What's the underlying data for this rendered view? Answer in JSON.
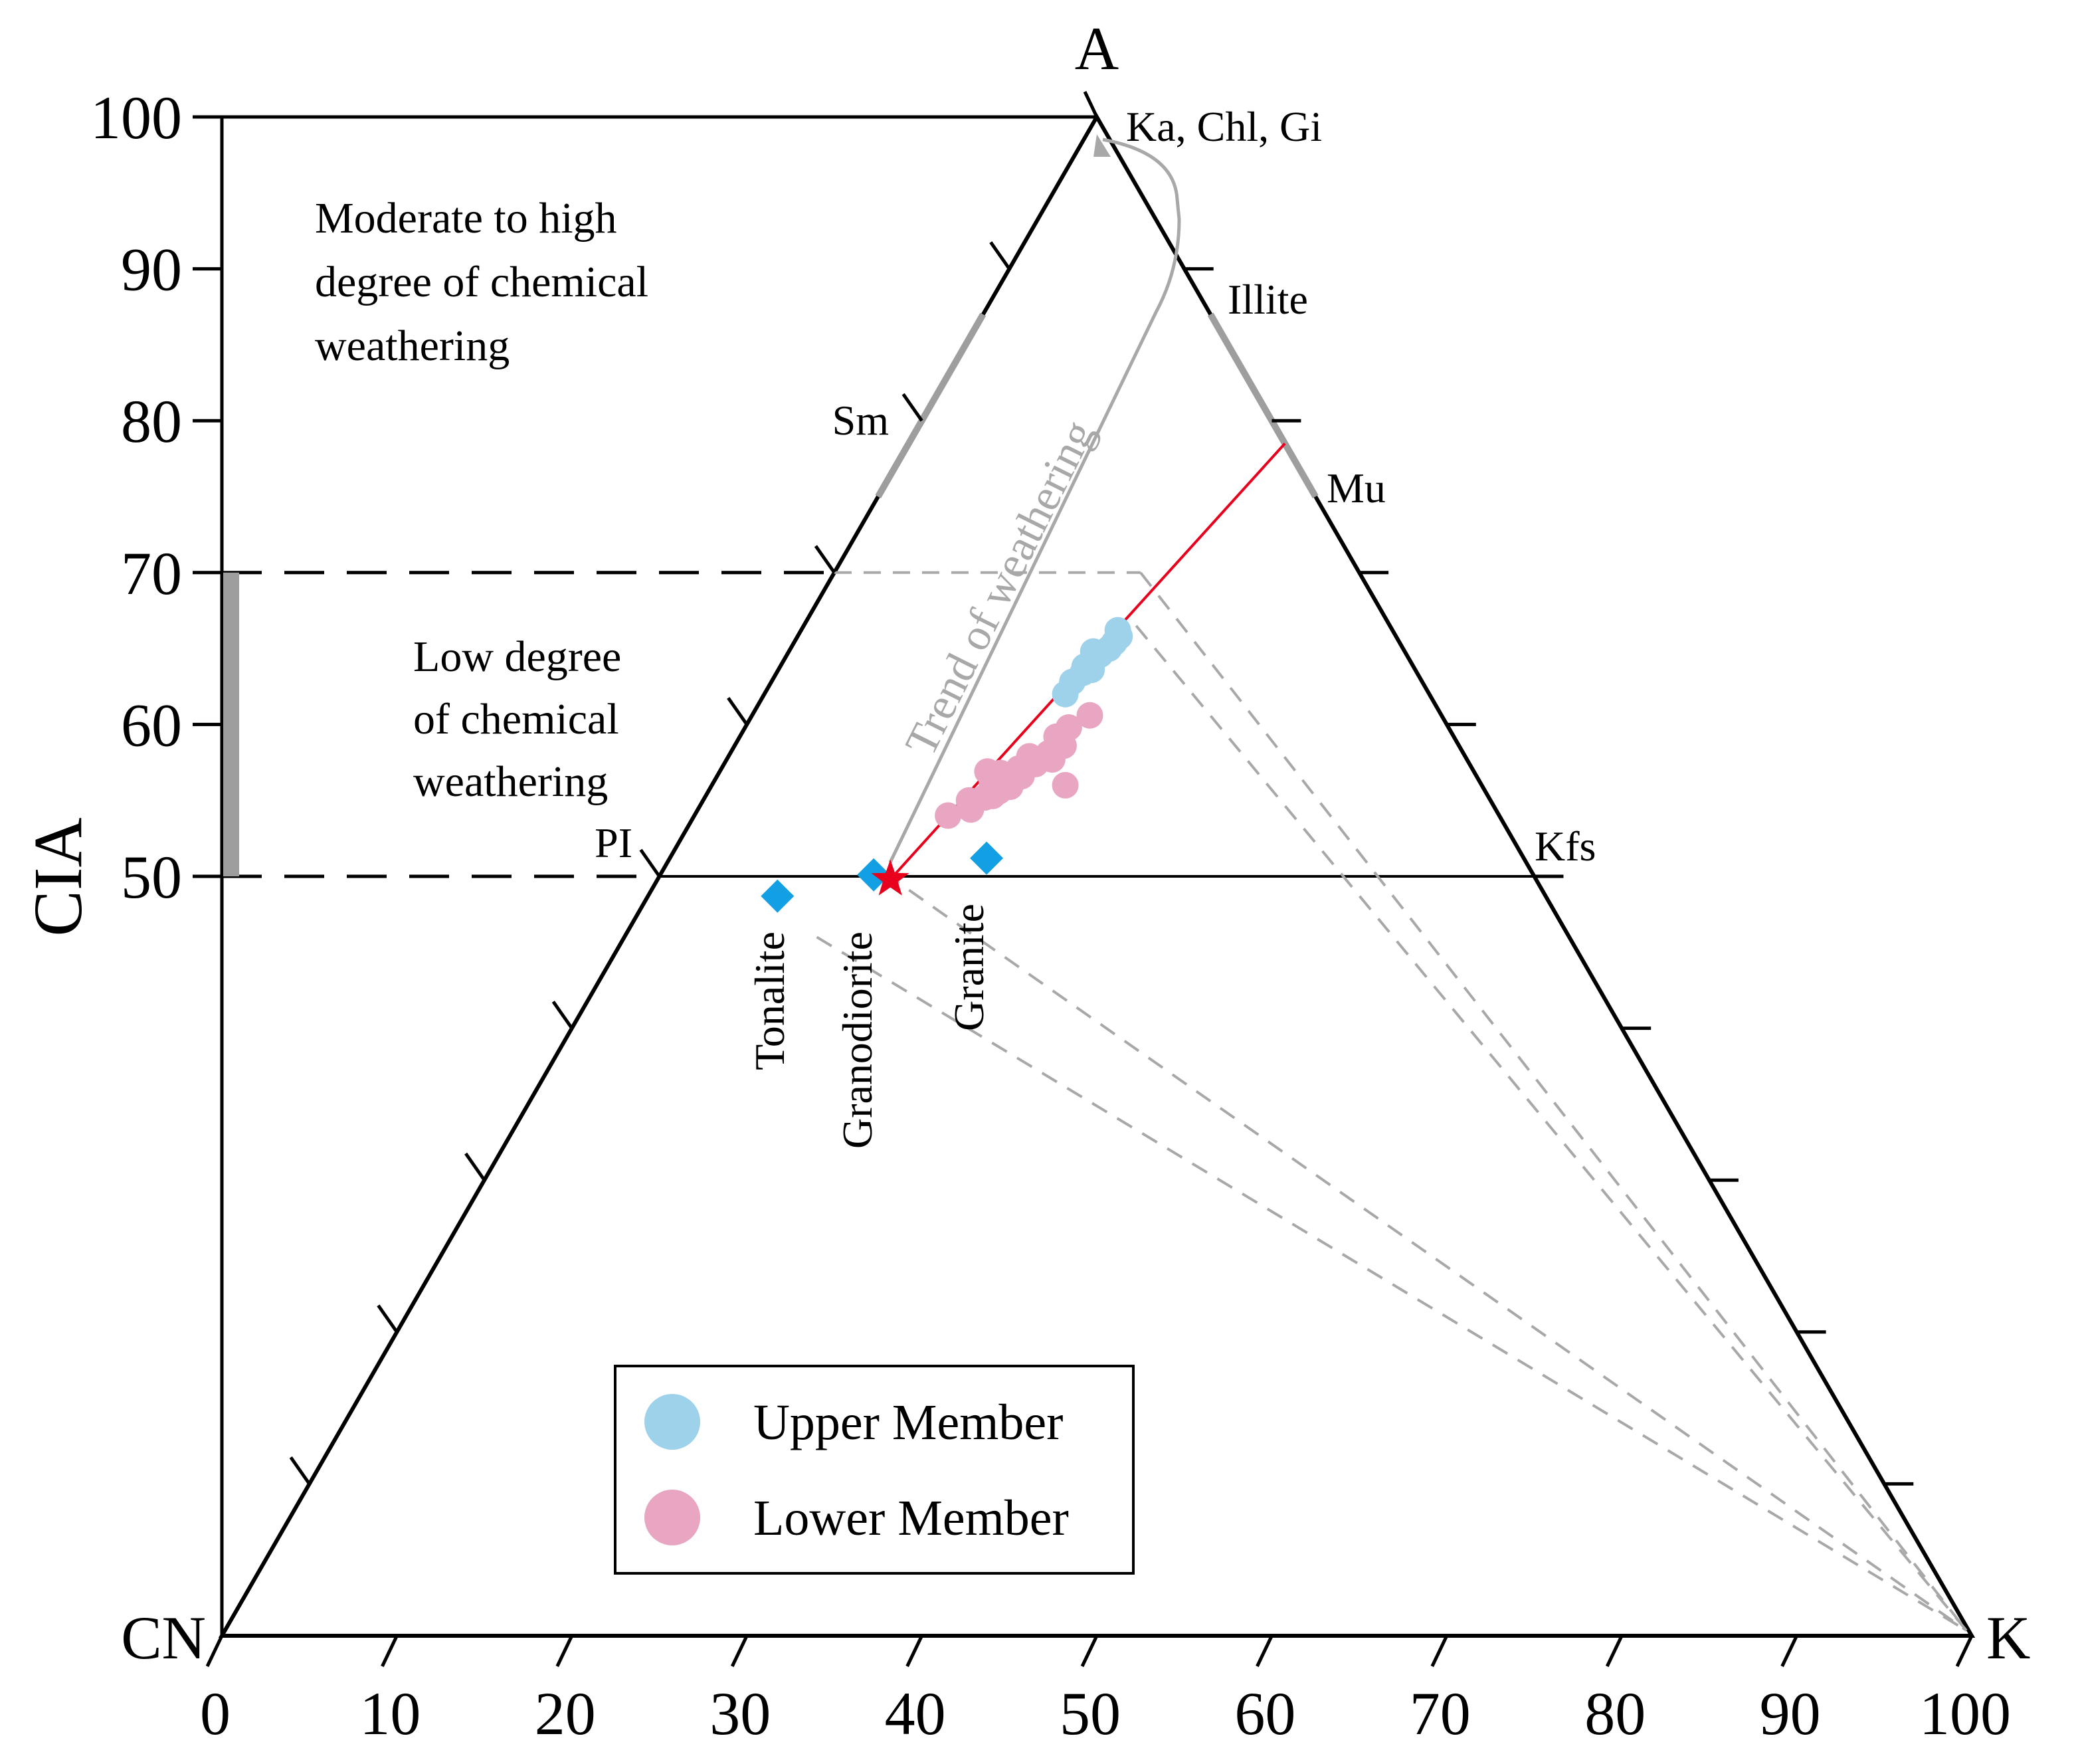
{
  "chart_data": {
    "type": "scatter",
    "diagram": "ternary",
    "vertices": {
      "top": "A",
      "left": "CN",
      "right": "K"
    },
    "ylabel": "CIA",
    "y_ticks": [
      "100",
      "90",
      "80",
      "70",
      "60",
      "50"
    ],
    "x_ticks": [
      "0",
      "10",
      "20",
      "30",
      "40",
      "50",
      "60",
      "70",
      "80",
      "90",
      "100"
    ],
    "minerals": [
      {
        "label": "Ka, Chl, Gi",
        "A": 100,
        "K": 0
      },
      {
        "label": "Illite",
        "A": 87,
        "K": 13
      },
      {
        "label": "Sm",
        "A": 80,
        "K": 0
      },
      {
        "label": "Mu",
        "A": 77,
        "K": 23
      },
      {
        "label": "PI",
        "A": 50,
        "K": 0
      },
      {
        "label": "Kfs",
        "A": 50,
        "K": 50
      }
    ],
    "region_labels": {
      "high": [
        "Moderate to high",
        "degree of chemical",
        "weathering"
      ],
      "low": [
        "Low degree",
        "of chemical",
        "weathering"
      ]
    },
    "trend_label": "Trend of weathering",
    "rocks": [
      {
        "name": "Tonalite",
        "A": 48.7,
        "K": 7.4
      },
      {
        "name": "Granodiorite",
        "A": 50.1,
        "K": 12.2
      },
      {
        "name": "Granite",
        "A": 51.2,
        "K": 18.1
      }
    ],
    "source_star": {
      "A": 49.8,
      "K": 13.3
    },
    "ideal_trend_line": {
      "from": {
        "A": 49.8,
        "K": 13.3
      },
      "to": {
        "A": 78.5,
        "K": 21.5
      }
    },
    "series": [
      {
        "name": "Upper Member",
        "color": "#9ed2ea",
        "points": [
          {
            "A": 62.0,
            "K": 17.2
          },
          {
            "A": 62.8,
            "K": 17.2
          },
          {
            "A": 63.4,
            "K": 17.5
          },
          {
            "A": 63.8,
            "K": 17.4
          },
          {
            "A": 64.2,
            "K": 17.7
          },
          {
            "A": 64.6,
            "K": 17.9
          },
          {
            "A": 65.0,
            "K": 18.2
          },
          {
            "A": 65.4,
            "K": 18.3
          },
          {
            "A": 65.8,
            "K": 18.4
          },
          {
            "A": 66.2,
            "K": 18.1
          },
          {
            "A": 63.6,
            "K": 17.9
          },
          {
            "A": 64.8,
            "K": 17.4
          }
        ]
      },
      {
        "name": "Lower Member",
        "color": "#e8a6c2",
        "points": [
          {
            "A": 54.0,
            "K": 14.5
          },
          {
            "A": 54.4,
            "K": 15.6
          },
          {
            "A": 55.0,
            "K": 15.2
          },
          {
            "A": 55.2,
            "K": 16.0
          },
          {
            "A": 55.6,
            "K": 16.6
          },
          {
            "A": 55.9,
            "K": 17.1
          },
          {
            "A": 56.2,
            "K": 15.9
          },
          {
            "A": 56.4,
            "K": 16.5
          },
          {
            "A": 56.6,
            "K": 17.4
          },
          {
            "A": 56.9,
            "K": 15.3
          },
          {
            "A": 57.1,
            "K": 17.0
          },
          {
            "A": 57.4,
            "K": 17.8
          },
          {
            "A": 57.7,
            "K": 18.6
          },
          {
            "A": 58.1,
            "K": 18.2
          },
          {
            "A": 58.6,
            "K": 18.8
          },
          {
            "A": 59.2,
            "K": 18.1
          },
          {
            "A": 59.8,
            "K": 18.5
          },
          {
            "A": 60.6,
            "K": 19.3
          },
          {
            "A": 56.0,
            "K": 20.2
          },
          {
            "A": 55.3,
            "K": 16.4
          },
          {
            "A": 56.8,
            "K": 16.1
          },
          {
            "A": 57.9,
            "K": 17.2
          }
        ]
      }
    ],
    "legend": {
      "position": "bottom-center",
      "entries": [
        "Upper Member",
        "Lower Member"
      ]
    },
    "colors": {
      "frame": "#000000",
      "guide": "#a8a8a8",
      "gray_bar": "#9e9e9e",
      "ideal_line": "#e8001c",
      "star": "#e8001c",
      "rock_marker": "#129fe4"
    }
  }
}
